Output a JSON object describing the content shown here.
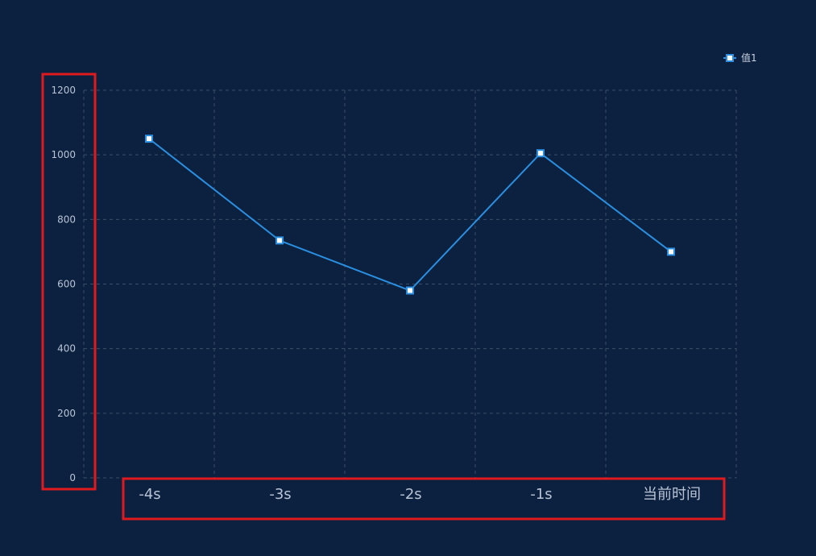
{
  "chart_data": {
    "type": "line",
    "categories": [
      "-4s",
      "-3s",
      "-2s",
      "-1s",
      "当前时间"
    ],
    "series": [
      {
        "name": "值1",
        "values": [
          1050,
          735,
          580,
          1005,
          700
        ]
      }
    ],
    "y_ticks": [
      "0",
      "200",
      "400",
      "600",
      "800",
      "1000",
      "1200"
    ],
    "ylim": [
      0,
      1200
    ],
    "grid": true,
    "legend_position": "top-right",
    "line_color": "#2a8fe0",
    "marker_fill": "#ffffff",
    "marker_stroke": "#2a8fe0",
    "highlight_color": "#e0191f"
  }
}
